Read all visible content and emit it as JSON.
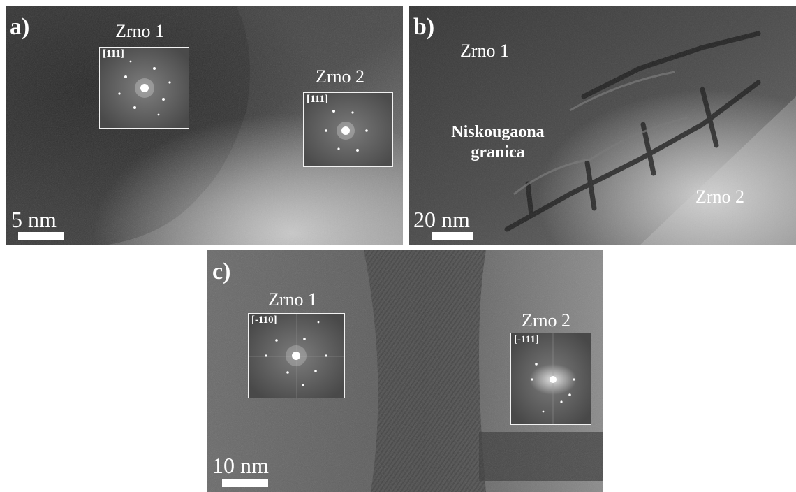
{
  "panels": {
    "a": {
      "label": "a)",
      "grain1": {
        "label": "Zrno 1",
        "zone_axis": "[111]"
      },
      "grain2": {
        "label": "Zrno 2",
        "zone_axis": "[111]"
      },
      "scale": "5 nm"
    },
    "b": {
      "label": "b)",
      "grain1": {
        "label": "Zrno 1"
      },
      "grain2": {
        "label": "Zrno 2"
      },
      "boundary_line1": "Niskougaona",
      "boundary_line2": "granica",
      "scale": "20 nm"
    },
    "c": {
      "label": "c)",
      "grain1": {
        "label": "Zrno 1",
        "zone_axis": "[-110]"
      },
      "grain2": {
        "label": "Zrno 2",
        "zone_axis": "[-111]"
      },
      "scale": "10 nm"
    }
  },
  "colors": {
    "annotation": "#ffffff",
    "background": "#ffffff"
  }
}
